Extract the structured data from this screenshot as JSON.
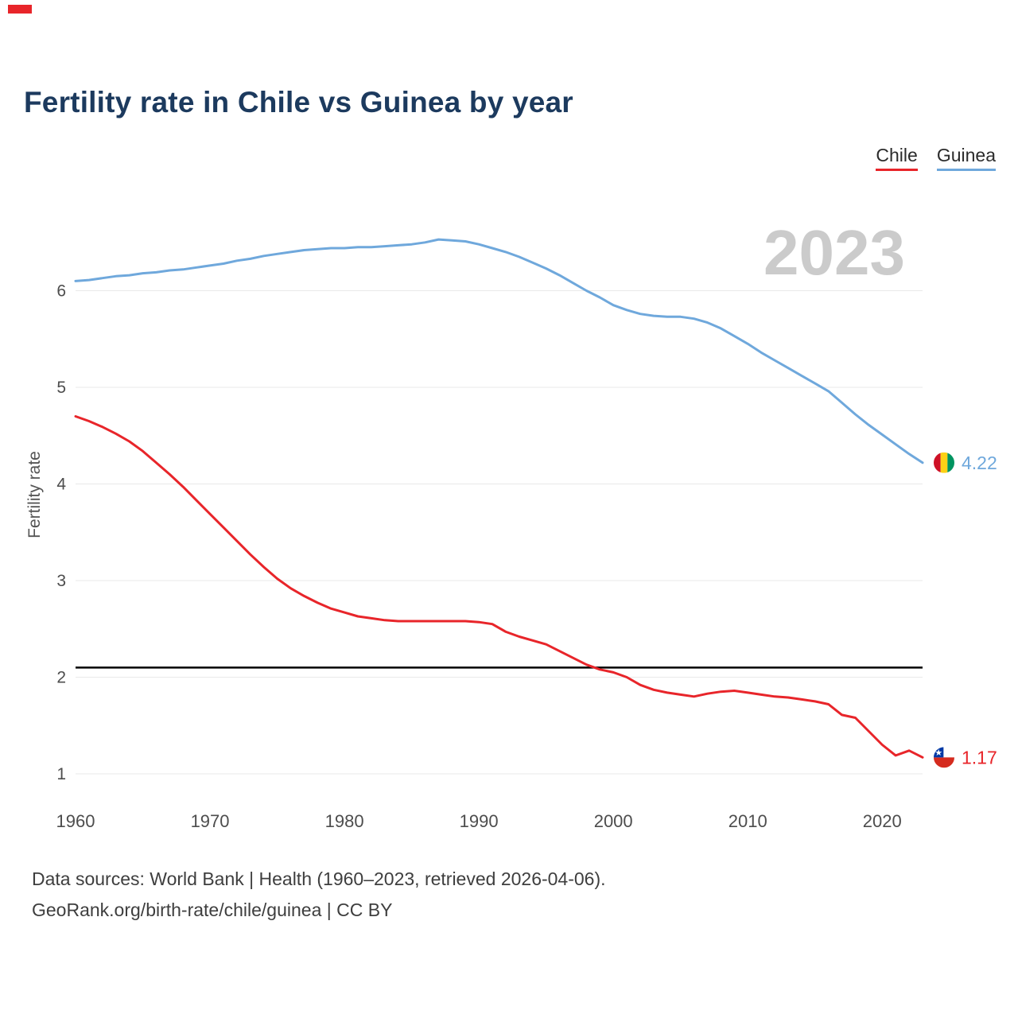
{
  "chart": {
    "title": "Fertility rate in Chile vs Guinea by year",
    "ylabel": "Fertility rate",
    "legend": [
      {
        "label": "Chile",
        "color": "#e8252a"
      },
      {
        "label": "Guinea",
        "color": "#6fa8dc"
      }
    ]
  },
  "chart_data": {
    "type": "line",
    "title": "Fertility rate in Chile vs Guinea by year",
    "xlabel": "",
    "ylabel": "Fertility rate",
    "watermark": "2023",
    "grid": "horizontal",
    "legend_position": "top-right",
    "x_ticks": [
      1960,
      1970,
      1980,
      1990,
      2000,
      2010,
      2020
    ],
    "y_ticks": [
      1,
      2,
      3,
      4,
      5,
      6
    ],
    "ylim": [
      0.75,
      6.9
    ],
    "xlim": [
      1960,
      2023
    ],
    "reference_line": {
      "value": 2.1,
      "color": "#000000"
    },
    "x": [
      1960,
      1961,
      1962,
      1963,
      1964,
      1965,
      1966,
      1967,
      1968,
      1969,
      1970,
      1971,
      1972,
      1973,
      1974,
      1975,
      1976,
      1977,
      1978,
      1979,
      1980,
      1981,
      1982,
      1983,
      1984,
      1985,
      1986,
      1987,
      1988,
      1989,
      1990,
      1991,
      1992,
      1993,
      1994,
      1995,
      1996,
      1997,
      1998,
      1999,
      2000,
      2001,
      2002,
      2003,
      2004,
      2005,
      2006,
      2007,
      2008,
      2009,
      2010,
      2011,
      2012,
      2013,
      2014,
      2015,
      2016,
      2017,
      2018,
      2019,
      2020,
      2021,
      2022,
      2023
    ],
    "series": [
      {
        "name": "Chile",
        "color": "#e8252a",
        "end_label": "1.17",
        "flag": "chile",
        "values": [
          4.7,
          4.65,
          4.59,
          4.52,
          4.44,
          4.34,
          4.22,
          4.1,
          3.97,
          3.83,
          3.69,
          3.55,
          3.41,
          3.27,
          3.14,
          3.02,
          2.92,
          2.84,
          2.77,
          2.71,
          2.67,
          2.63,
          2.61,
          2.59,
          2.58,
          2.58,
          2.58,
          2.58,
          2.58,
          2.58,
          2.57,
          2.55,
          2.47,
          2.42,
          2.38,
          2.34,
          2.27,
          2.2,
          2.13,
          2.08,
          2.05,
          2.0,
          1.92,
          1.87,
          1.84,
          1.82,
          1.8,
          1.83,
          1.85,
          1.86,
          1.84,
          1.82,
          1.8,
          1.79,
          1.77,
          1.75,
          1.72,
          1.61,
          1.58,
          1.44,
          1.3,
          1.19,
          1.24,
          1.17
        ]
      },
      {
        "name": "Guinea",
        "color": "#6fa8dc",
        "end_label": "4.22",
        "flag": "guinea",
        "values": [
          6.1,
          6.11,
          6.13,
          6.15,
          6.16,
          6.18,
          6.19,
          6.21,
          6.22,
          6.24,
          6.26,
          6.28,
          6.31,
          6.33,
          6.36,
          6.38,
          6.4,
          6.42,
          6.43,
          6.44,
          6.44,
          6.45,
          6.45,
          6.46,
          6.47,
          6.48,
          6.5,
          6.53,
          6.52,
          6.51,
          6.48,
          6.44,
          6.4,
          6.35,
          6.29,
          6.23,
          6.16,
          6.08,
          6.0,
          5.93,
          5.85,
          5.8,
          5.76,
          5.74,
          5.73,
          5.73,
          5.71,
          5.67,
          5.61,
          5.53,
          5.45,
          5.36,
          5.28,
          5.2,
          5.12,
          5.04,
          4.96,
          4.84,
          4.72,
          4.61,
          4.51,
          4.41,
          4.31,
          4.22
        ]
      }
    ]
  },
  "footer": {
    "line1": "Data sources: World Bank | Health (1960–2023, retrieved 2026-04-06).",
    "line2": "GeoRank.org/birth-rate/chile/guinea | CC BY"
  }
}
